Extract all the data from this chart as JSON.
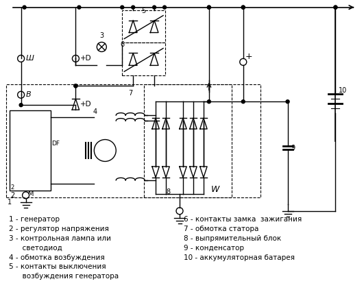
{
  "background_color": "#ffffff",
  "fig_width": 5.31,
  "fig_height": 4.42,
  "dpi": 100,
  "legend_lines": [
    "1 - генератор",
    "2 - регулятор напряжения",
    "3 - контрольная лампа или",
    "      светодиод",
    "4 - обмотка возбуждения",
    "5 - контакты выключения",
    "      возбуждения генератора"
  ],
  "legend_lines_right": [
    "6 - контакты замка  зажигания",
    "7 - обмотка статора",
    "8 - выпрямительный блок",
    "9 - конденсатор",
    "10 - аккумуляторная батарея"
  ]
}
